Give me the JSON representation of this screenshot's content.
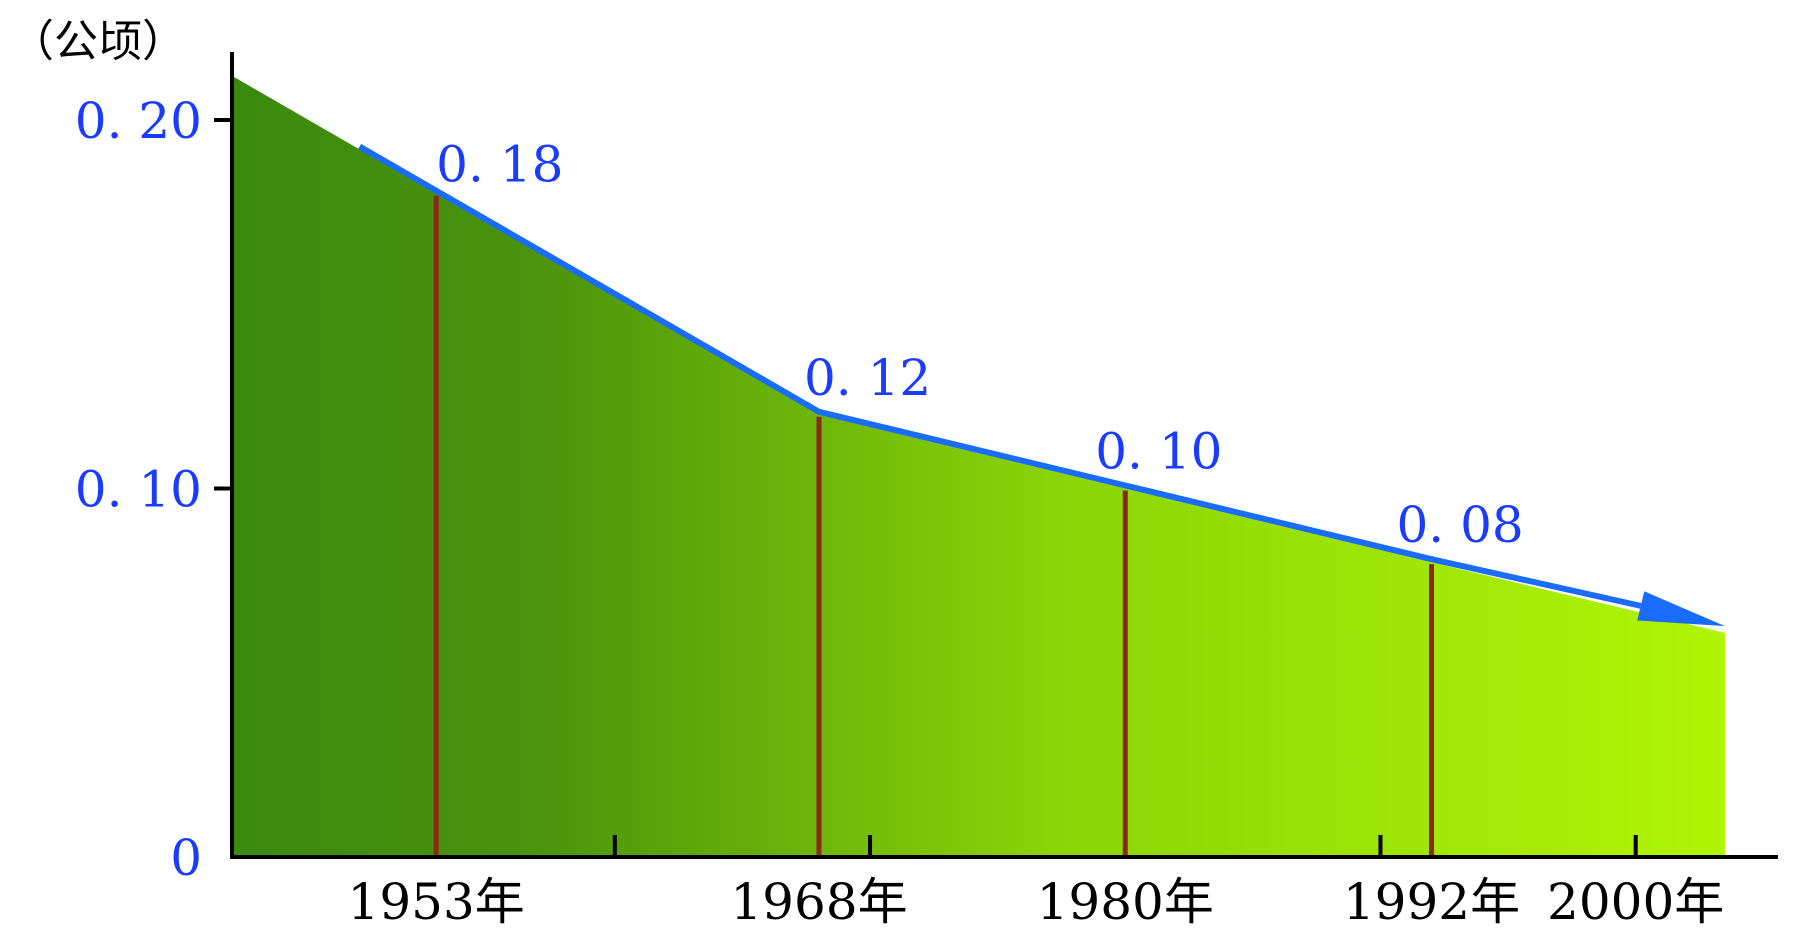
{
  "chart_data": {
    "type": "area",
    "ylabel": "（公顷）",
    "ylim": [
      0,
      0.2
    ],
    "y_ticks": [
      "0",
      "0. 10",
      "0. 20"
    ],
    "x_ticks": [
      "1953年",
      "1968年",
      "1980年",
      "1992年",
      "2000年"
    ],
    "x_tick_years": [
      1953,
      1968,
      1980,
      1992,
      2000
    ],
    "series": [
      {
        "points": [
          {
            "year": 1953,
            "value": 0.18,
            "label": "0. 18"
          },
          {
            "year": 1968,
            "value": 0.12,
            "label": "0. 12"
          },
          {
            "year": 1980,
            "value": 0.1,
            "label": "0. 10"
          },
          {
            "year": 1992,
            "value": 0.08,
            "label": "0. 08"
          }
        ]
      }
    ],
    "grid": false,
    "colors": {
      "fill_start": "#3a8a10",
      "fill_end": "#b0f505",
      "line": "#1a6cff",
      "drop_lines": "#8b2a14",
      "axis": "#000000",
      "tick_text_y": "#1a3cff",
      "tick_text_x": "#000000"
    }
  }
}
